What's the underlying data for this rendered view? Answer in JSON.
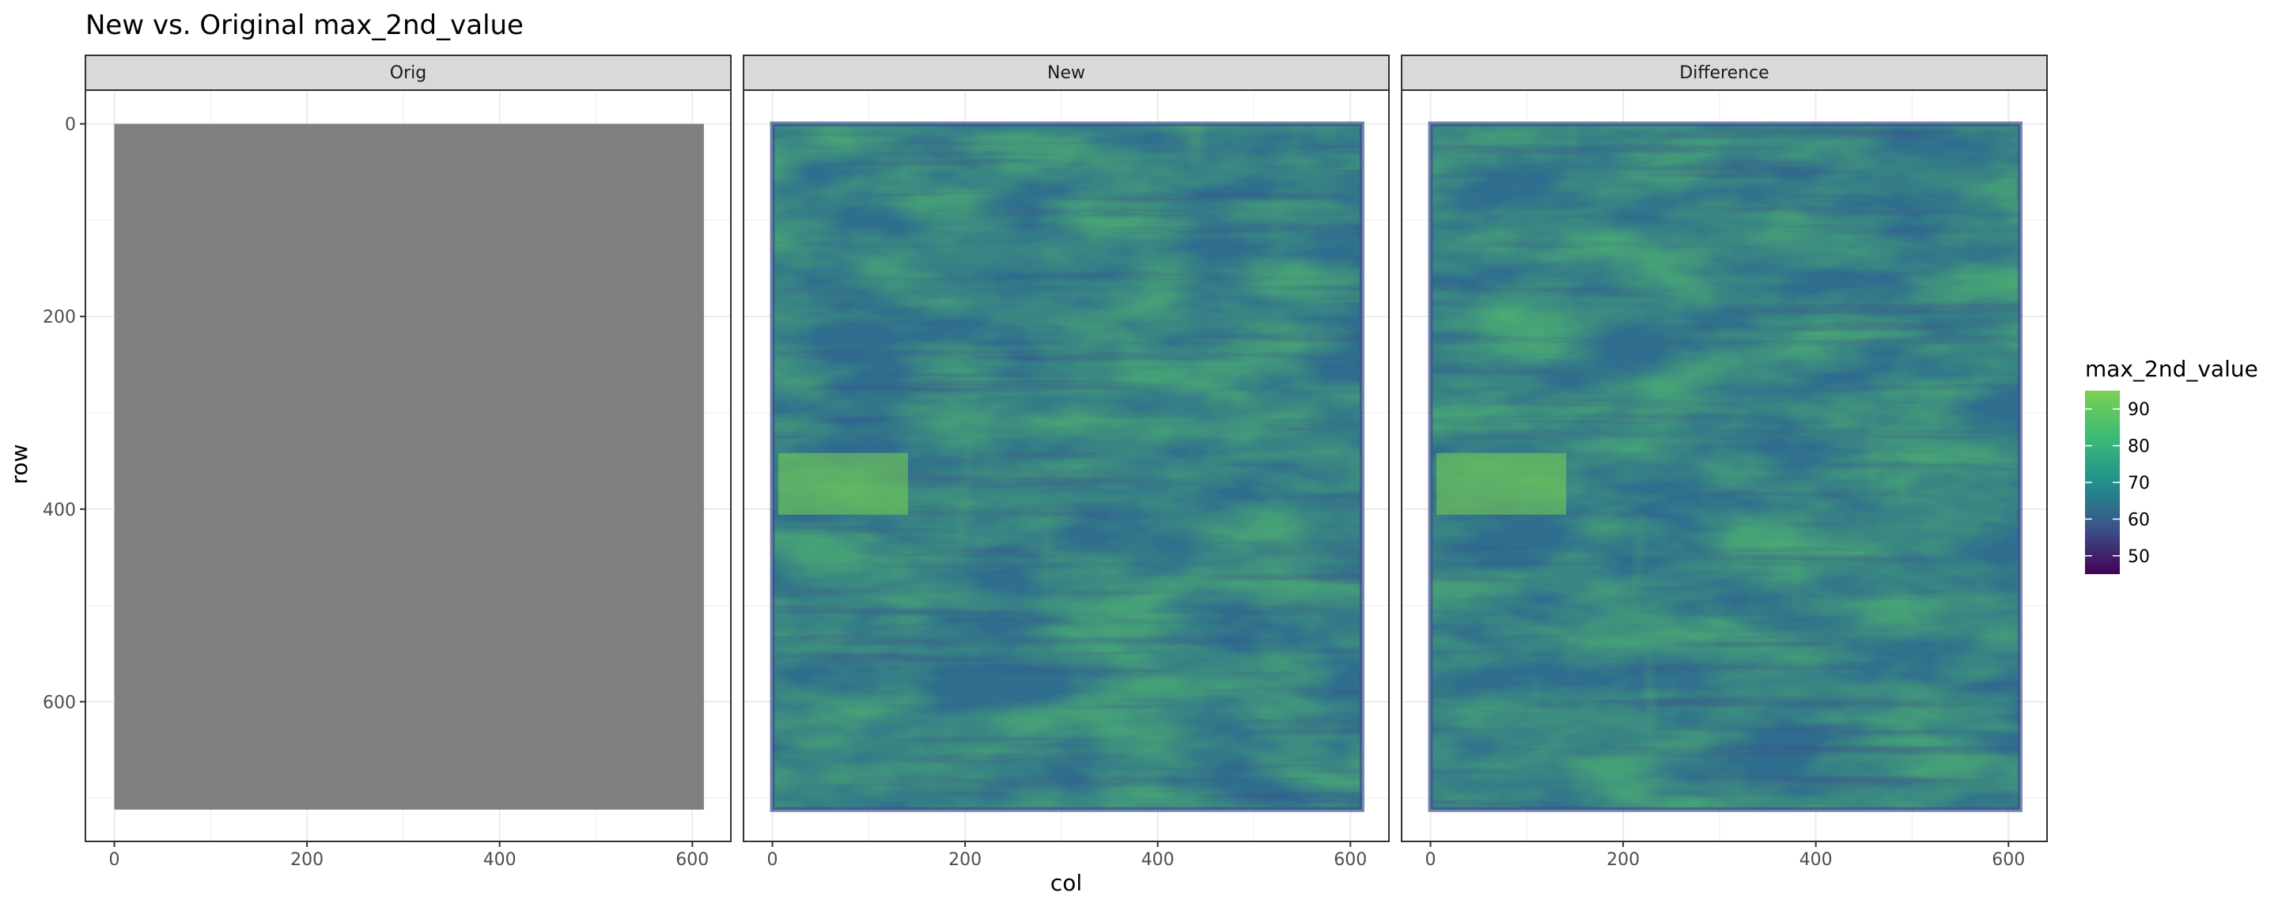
{
  "chart_data": {
    "type": "heatmap",
    "title": "New vs. Original max_2nd_value",
    "xlabel": "col",
    "ylabel": "row",
    "xlim": [
      -30,
      640
    ],
    "ylim": [
      745,
      -35
    ],
    "x_ticks": [
      0,
      200,
      400,
      600
    ],
    "y_ticks": [
      0,
      200,
      400,
      600
    ],
    "grid": true,
    "y_reversed": true,
    "facets": [
      {
        "label": "Orig",
        "fill": "missing (NA)",
        "na_color": "#7f7f7f",
        "extent_x": [
          0,
          612
        ],
        "extent_y": [
          0,
          712
        ]
      },
      {
        "label": "New",
        "fill": "raster",
        "extent_x": [
          0,
          612
        ],
        "extent_y": [
          0,
          712
        ]
      },
      {
        "label": "Difference",
        "fill": "raster",
        "extent_x": [
          0,
          612
        ],
        "extent_y": [
          0,
          712
        ]
      }
    ],
    "legend": {
      "title": "max_2nd_value",
      "position": "right",
      "range": [
        45,
        95
      ],
      "ticks": [
        50,
        60,
        70,
        80,
        90
      ],
      "palette": [
        "#440154",
        "#3b528b",
        "#21908c",
        "#3cbb75",
        "#7ad151"
      ]
    }
  }
}
